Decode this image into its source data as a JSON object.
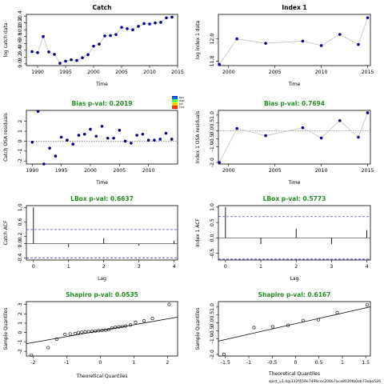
{
  "footer": "spict_v1.4@332f459e7d96cec206b7aca803fdb0eb73eba526",
  "chart_data": [
    {
      "id": "catch-data",
      "type": "line",
      "title": "Catch",
      "xlabel": "Time",
      "ylabel": "log catch data",
      "xlim": [
        1988,
        2015
      ],
      "ylim": [
        8.95,
        10.45
      ],
      "xticks": [
        1990,
        1995,
        2000,
        2005,
        2010,
        2015
      ],
      "yticks": [
        9.0,
        9.2,
        9.4,
        9.6,
        9.8,
        10.0,
        10.2,
        10.4
      ],
      "ytick_labels": [
        "9.0",
        "9.2",
        "9.4",
        "9.6",
        "9.8",
        "10.0",
        "10.2",
        "10.4"
      ],
      "series": [
        {
          "x": [
            1989,
            1990,
            1991,
            1992,
            1993,
            1994,
            1995,
            1996,
            1997,
            1998,
            1999,
            2000,
            2001,
            2002,
            2003,
            2004,
            2005,
            2006,
            2007,
            2008,
            2009,
            2010,
            2011,
            2012,
            2013,
            2014
          ],
          "values": [
            9.36,
            9.33,
            9.8,
            9.35,
            9.28,
            9.02,
            9.08,
            9.12,
            9.1,
            9.18,
            9.27,
            9.52,
            9.58,
            9.82,
            9.83,
            9.86,
            10.07,
            10.03,
            10.0,
            10.1,
            10.18,
            10.17,
            10.2,
            10.22,
            10.35,
            10.37
          ]
        }
      ]
    },
    {
      "id": "index-data",
      "type": "line",
      "title": "Index 1",
      "xlabel": "Time",
      "ylabel": "log index 1 data",
      "xlim": [
        1998.9,
        2015.3
      ],
      "ylim": [
        11.76,
        12.22
      ],
      "xticks": [
        2000,
        2005,
        2010,
        2015
      ],
      "yticks": [
        11.8,
        12.0
      ],
      "ytick_labels": [
        "11.8",
        "12.0"
      ],
      "series": [
        {
          "x": [
            1999,
            2000.9,
            2004,
            2008,
            2010,
            2012,
            2014,
            2015
          ],
          "values": [
            11.77,
            12.0,
            11.96,
            11.98,
            11.94,
            12.04,
            11.95,
            12.19
          ]
        }
      ]
    },
    {
      "id": "catch-osa-residuals",
      "type": "scatter",
      "title": "Bias p-val: 0.2019",
      "xlabel": "Time",
      "ylabel": "Catch OSA residuals",
      "xlim": [
        1989,
        2015
      ],
      "ylim": [
        -2.3,
        3.1
      ],
      "xticks": [
        1990,
        1995,
        2000,
        2005,
        2010
      ],
      "yticks": [
        -2,
        -1,
        0,
        1,
        2
      ],
      "ytick_labels": [
        "-2",
        "-1",
        "0",
        "1",
        "2"
      ],
      "legend": [
        "Jan",
        "Apr",
        "Jul",
        "Oct"
      ],
      "series": [
        {
          "x": [
            1990,
            1991,
            1992,
            1993,
            1994,
            1995,
            1996,
            1997,
            1998,
            1999,
            2000,
            2001,
            2002,
            2003,
            2004,
            2005,
            2006,
            2007,
            2008,
            2009,
            2010,
            2011,
            2012,
            2013,
            2014
          ],
          "values": [
            -0.1,
            3.0,
            -2.3,
            -0.7,
            -1.5,
            0.4,
            0.1,
            -0.3,
            0.6,
            0.7,
            1.2,
            0.5,
            1.5,
            0.3,
            0.3,
            1.1,
            0.0,
            -0.2,
            0.6,
            0.7,
            0.1,
            0.1,
            0.2,
            0.8,
            0.2
          ]
        }
      ]
    },
    {
      "id": "index-osa-residuals",
      "type": "line",
      "title": "Bias p-val: 0.7694",
      "xlabel": "Time",
      "ylabel": "Index 1 OSA residuals",
      "xlim": [
        1998.9,
        2015.3
      ],
      "ylim": [
        -2.1,
        1.3
      ],
      "xticks": [
        2000,
        2005,
        2010,
        2015
      ],
      "yticks": [
        -2.0,
        -1.0,
        -0.5,
        0.0,
        0.5,
        1.0
      ],
      "ytick_labels": [
        "-2.0",
        "-1.0",
        "-0.5",
        "0.0",
        "0.5",
        "1.0"
      ],
      "series": [
        {
          "x": [
            1999,
            2000.9,
            2004,
            2008,
            2010,
            2012,
            2014,
            2015
          ],
          "values": [
            -2.0,
            0.15,
            -0.3,
            0.2,
            -0.45,
            0.65,
            -0.4,
            1.15
          ]
        }
      ]
    },
    {
      "id": "catch-acf",
      "type": "bar",
      "title": "LBox p-val: 0.6637",
      "xlabel": "Lag",
      "ylabel": "Catch ACF",
      "xlim": [
        -0.2,
        4.1
      ],
      "ylim": [
        -0.45,
        1.05
      ],
      "xticks": [
        0,
        1,
        2,
        3,
        4
      ],
      "yticks": [
        -0.4,
        0.0,
        0.2,
        0.6,
        1.0
      ],
      "ytick_labels": [
        "-0.4",
        "0.0",
        "0.2",
        "0.6",
        "1.0"
      ],
      "series": [
        {
          "x": [
            0,
            1,
            2,
            3,
            4
          ],
          "values": [
            1.0,
            -0.1,
            0.15,
            -0.05,
            0.08
          ]
        }
      ],
      "confidence_band": [
        -0.39,
        0.39
      ]
    },
    {
      "id": "index-acf",
      "type": "bar",
      "title": "LBox p-val: 0.5773",
      "xlabel": "Lag",
      "ylabel": "Index 1 ACF",
      "xlim": [
        -0.2,
        4.1
      ],
      "ylim": [
        -0.72,
        1.05
      ],
      "xticks": [
        0,
        1,
        2,
        3,
        4
      ],
      "yticks": [
        -0.5,
        0.0,
        0.5,
        1.0
      ],
      "ytick_labels": [
        "-0.5",
        "0.0",
        "0.5",
        "1.0"
      ],
      "series": [
        {
          "x": [
            0,
            1,
            2,
            3,
            4
          ],
          "values": [
            1.0,
            -0.2,
            0.3,
            -0.2,
            0.25
          ]
        }
      ],
      "confidence_band": [
        -0.69,
        0.69
      ]
    },
    {
      "id": "catch-qq",
      "type": "scatter",
      "title": "Shapiro p-val: 0.0535",
      "xlabel": "Theoretical Quantiles",
      "ylabel": "Sample Quantiles",
      "xlim": [
        -2.2,
        2.3
      ],
      "ylim": [
        -2.5,
        3.3
      ],
      "xticks": [
        -2,
        -1,
        0,
        1,
        2
      ],
      "yticks": [
        -2,
        -1,
        0,
        1,
        2,
        3
      ],
      "ytick_labels": [
        "-2",
        "-1",
        "0",
        "1",
        "2",
        "3"
      ],
      "series": [
        {
          "x": [
            -2.05,
            -1.55,
            -1.3,
            -1.05,
            -0.9,
            -0.75,
            -0.65,
            -0.55,
            -0.45,
            -0.35,
            -0.25,
            -0.15,
            -0.05,
            0.05,
            0.15,
            0.25,
            0.35,
            0.45,
            0.55,
            0.65,
            0.75,
            0.9,
            1.05,
            1.3,
            1.55,
            2.05
          ],
          "values": [
            -2.4,
            -1.6,
            -0.7,
            -0.2,
            -0.15,
            -0.1,
            0.0,
            0.05,
            0.08,
            0.1,
            0.12,
            0.15,
            0.2,
            0.22,
            0.25,
            0.3,
            0.5,
            0.55,
            0.6,
            0.65,
            0.7,
            0.8,
            1.1,
            1.25,
            1.5,
            3.0
          ]
        }
      ],
      "reference_line": {
        "intercept": 0.2,
        "slope": 0.63
      }
    },
    {
      "id": "index-qq",
      "type": "scatter",
      "title": "Shapiro p-val: 0.6167",
      "xlabel": "Theoretical Quantiles",
      "ylabel": "Sample Quantiles",
      "xlim": [
        -1.65,
        1.6
      ],
      "ylim": [
        -2.1,
        1.35
      ],
      "xticks": [
        -1.5,
        -1.0,
        -0.5,
        0.0,
        0.5,
        1.0,
        1.5
      ],
      "yticks": [
        -2.0,
        -1.0,
        -0.5,
        0.0,
        0.5,
        1.0
      ],
      "ytick_labels": [
        "-2.0",
        "-1.0",
        "-0.5",
        "0.0",
        "0.5",
        "1.0"
      ],
      "series": [
        {
          "x": [
            -1.53,
            -0.89,
            -0.49,
            -0.16,
            0.16,
            0.49,
            0.89,
            1.53
          ],
          "values": [
            -2.0,
            -0.3,
            -0.25,
            -0.15,
            0.15,
            0.2,
            0.65,
            1.15
          ]
        }
      ],
      "reference_line": {
        "intercept": -0.05,
        "slope": 0.67
      }
    }
  ]
}
